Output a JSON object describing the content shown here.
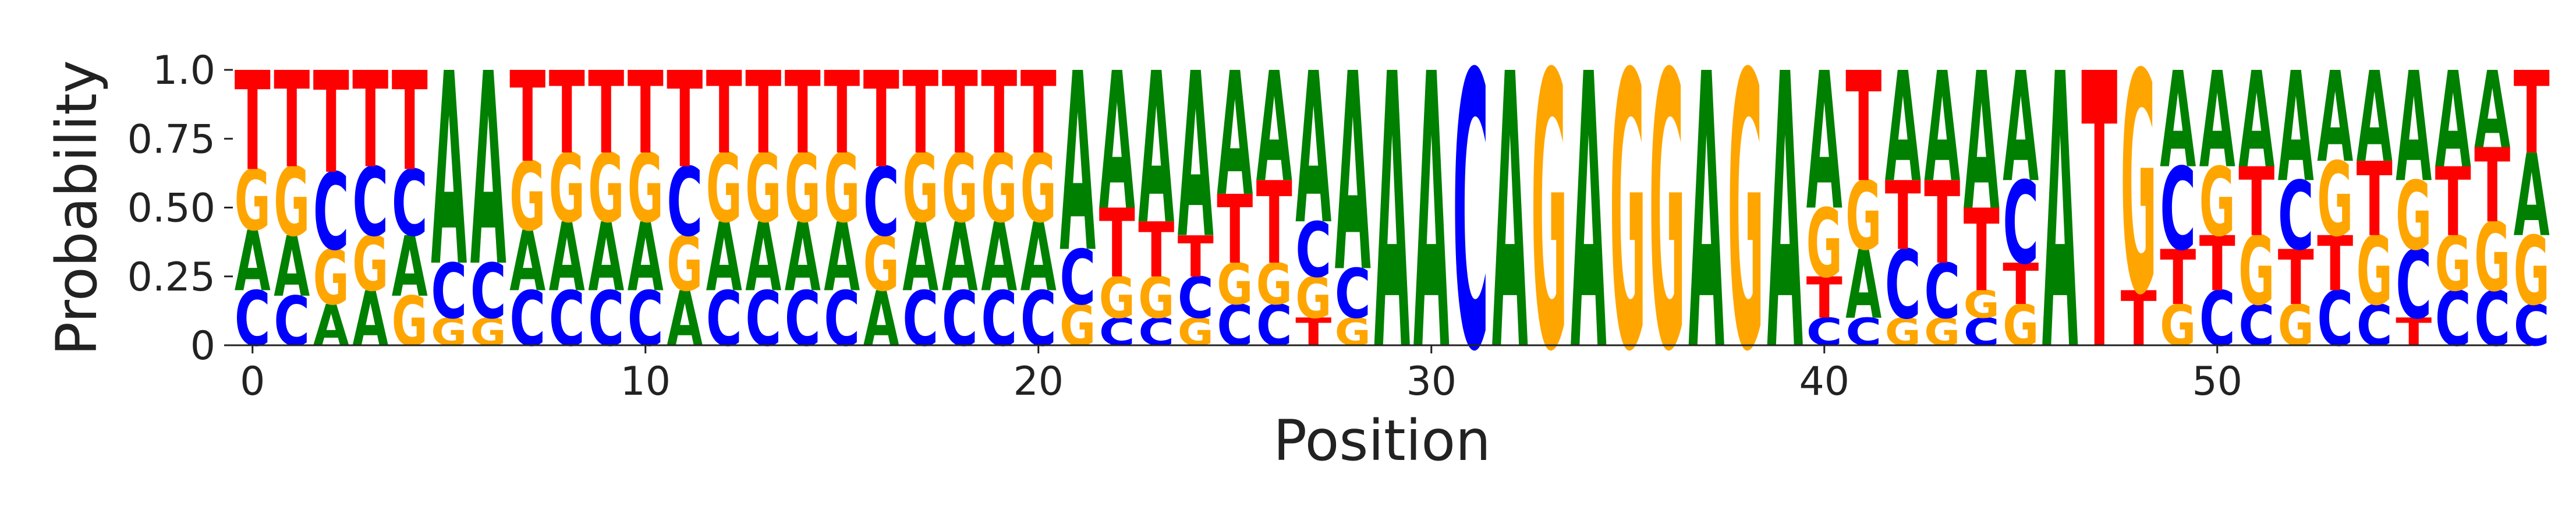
{
  "chart_data": {
    "type": "sequence-logo",
    "xlabel": "Position",
    "ylabel": "Probability",
    "xlim": [
      0,
      58
    ],
    "ylim": [
      0,
      1.0
    ],
    "x_ticks": [
      0,
      10,
      20,
      30,
      40,
      50
    ],
    "y_ticks": [
      {
        "value": 0,
        "label": "0"
      },
      {
        "value": 0.25,
        "label": "0.25"
      },
      {
        "value": 0.5,
        "label": "0.50"
      },
      {
        "value": 0.75,
        "label": "0.75"
      },
      {
        "value": 1.0,
        "label": "1.0"
      }
    ],
    "grid": false,
    "colors": {
      "A": "#008000",
      "C": "#0000ff",
      "G": "#ffa500",
      "T": "#ff0000"
    },
    "positions": [
      {
        "A": 0.22,
        "C": 0.2,
        "G": 0.22,
        "T": 0.36
      },
      {
        "A": 0.22,
        "C": 0.18,
        "G": 0.25,
        "T": 0.35
      },
      {
        "A": 0.15,
        "C": 0.28,
        "G": 0.2,
        "T": 0.37
      },
      {
        "A": 0.2,
        "C": 0.25,
        "G": 0.2,
        "T": 0.35
      },
      {
        "A": 0.22,
        "C": 0.24,
        "G": 0.18,
        "T": 0.36
      },
      {
        "A": 0.7,
        "C": 0.2,
        "G": 0.1,
        "T": 0.0
      },
      {
        "A": 0.7,
        "C": 0.2,
        "G": 0.1,
        "T": 0.0
      },
      {
        "A": 0.22,
        "C": 0.2,
        "G": 0.25,
        "T": 0.33
      },
      {
        "A": 0.25,
        "C": 0.2,
        "G": 0.25,
        "T": 0.3
      },
      {
        "A": 0.25,
        "C": 0.2,
        "G": 0.25,
        "T": 0.3
      },
      {
        "A": 0.25,
        "C": 0.2,
        "G": 0.25,
        "T": 0.3
      },
      {
        "A": 0.2,
        "C": 0.25,
        "G": 0.2,
        "T": 0.35
      },
      {
        "A": 0.25,
        "C": 0.2,
        "G": 0.25,
        "T": 0.3
      },
      {
        "A": 0.25,
        "C": 0.2,
        "G": 0.25,
        "T": 0.3
      },
      {
        "A": 0.25,
        "C": 0.2,
        "G": 0.25,
        "T": 0.3
      },
      {
        "A": 0.25,
        "C": 0.2,
        "G": 0.25,
        "T": 0.3
      },
      {
        "A": 0.2,
        "C": 0.25,
        "G": 0.2,
        "T": 0.35
      },
      {
        "A": 0.25,
        "C": 0.2,
        "G": 0.25,
        "T": 0.3
      },
      {
        "A": 0.25,
        "C": 0.2,
        "G": 0.25,
        "T": 0.3
      },
      {
        "A": 0.25,
        "C": 0.2,
        "G": 0.25,
        "T": 0.3
      },
      {
        "A": 0.25,
        "C": 0.2,
        "G": 0.25,
        "T": 0.3
      },
      {
        "A": 0.65,
        "C": 0.2,
        "G": 0.15,
        "T": 0.0
      },
      {
        "A": 0.5,
        "C": 0.1,
        "G": 0.15,
        "T": 0.25
      },
      {
        "A": 0.55,
        "C": 0.1,
        "G": 0.15,
        "T": 0.2
      },
      {
        "A": 0.6,
        "C": 0.15,
        "G": 0.1,
        "T": 0.15
      },
      {
        "A": 0.45,
        "C": 0.15,
        "G": 0.15,
        "T": 0.25
      },
      {
        "A": 0.4,
        "C": 0.15,
        "G": 0.15,
        "T": 0.3
      },
      {
        "A": 0.55,
        "C": 0.2,
        "G": 0.15,
        "T": 0.1
      },
      {
        "A": 0.72,
        "C": 0.18,
        "G": 0.1,
        "T": 0.0
      },
      {
        "A": 1.0,
        "C": 0.0,
        "G": 0.0,
        "T": 0.0
      },
      {
        "A": 1.0,
        "C": 0.0,
        "G": 0.0,
        "T": 0.0
      },
      {
        "A": 0.0,
        "C": 1.0,
        "G": 0.0,
        "T": 0.0
      },
      {
        "A": 1.0,
        "C": 0.0,
        "G": 0.0,
        "T": 0.0
      },
      {
        "A": 0.0,
        "C": 0.0,
        "G": 1.0,
        "T": 0.0
      },
      {
        "A": 1.0,
        "C": 0.0,
        "G": 0.0,
        "T": 0.0
      },
      {
        "A": 0.0,
        "C": 0.0,
        "G": 1.0,
        "T": 0.0
      },
      {
        "A": 0.0,
        "C": 0.0,
        "G": 1.0,
        "T": 0.0
      },
      {
        "A": 1.0,
        "C": 0.0,
        "G": 0.0,
        "T": 0.0
      },
      {
        "A": 0.0,
        "C": 0.0,
        "G": 1.0,
        "T": 0.0
      },
      {
        "A": 1.0,
        "C": 0.0,
        "G": 0.0,
        "T": 0.0
      },
      {
        "A": 0.5,
        "C": 0.1,
        "G": 0.25,
        "T": 0.15
      },
      {
        "A": 0.25,
        "C": 0.1,
        "G": 0.25,
        "T": 0.4
      },
      {
        "A": 0.4,
        "C": 0.25,
        "G": 0.1,
        "T": 0.25
      },
      {
        "A": 0.4,
        "C": 0.2,
        "G": 0.1,
        "T": 0.3
      },
      {
        "A": 0.5,
        "C": 0.1,
        "G": 0.1,
        "T": 0.3
      },
      {
        "A": 0.4,
        "C": 0.3,
        "G": 0.15,
        "T": 0.15
      },
      {
        "A": 1.0,
        "C": 0.0,
        "G": 0.0,
        "T": 0.0
      },
      {
        "A": 0.0,
        "C": 0.0,
        "G": 0.0,
        "T": 1.0
      },
      {
        "A": 0.0,
        "C": 0.0,
        "G": 0.8,
        "T": 0.2
      },
      {
        "A": 0.35,
        "C": 0.3,
        "G": 0.15,
        "T": 0.2
      },
      {
        "A": 0.35,
        "C": 0.2,
        "G": 0.25,
        "T": 0.2
      },
      {
        "A": 0.35,
        "C": 0.15,
        "G": 0.25,
        "T": 0.25
      },
      {
        "A": 0.4,
        "C": 0.25,
        "G": 0.15,
        "T": 0.2
      },
      {
        "A": 0.33,
        "C": 0.2,
        "G": 0.27,
        "T": 0.2
      },
      {
        "A": 0.33,
        "C": 0.15,
        "G": 0.25,
        "T": 0.27
      },
      {
        "A": 0.4,
        "C": 0.25,
        "G": 0.25,
        "T": 0.1
      },
      {
        "A": 0.35,
        "C": 0.2,
        "G": 0.2,
        "T": 0.25
      },
      {
        "A": 0.28,
        "C": 0.2,
        "G": 0.25,
        "T": 0.27
      },
      {
        "A": 0.3,
        "C": 0.15,
        "G": 0.25,
        "T": 0.3
      }
    ]
  }
}
